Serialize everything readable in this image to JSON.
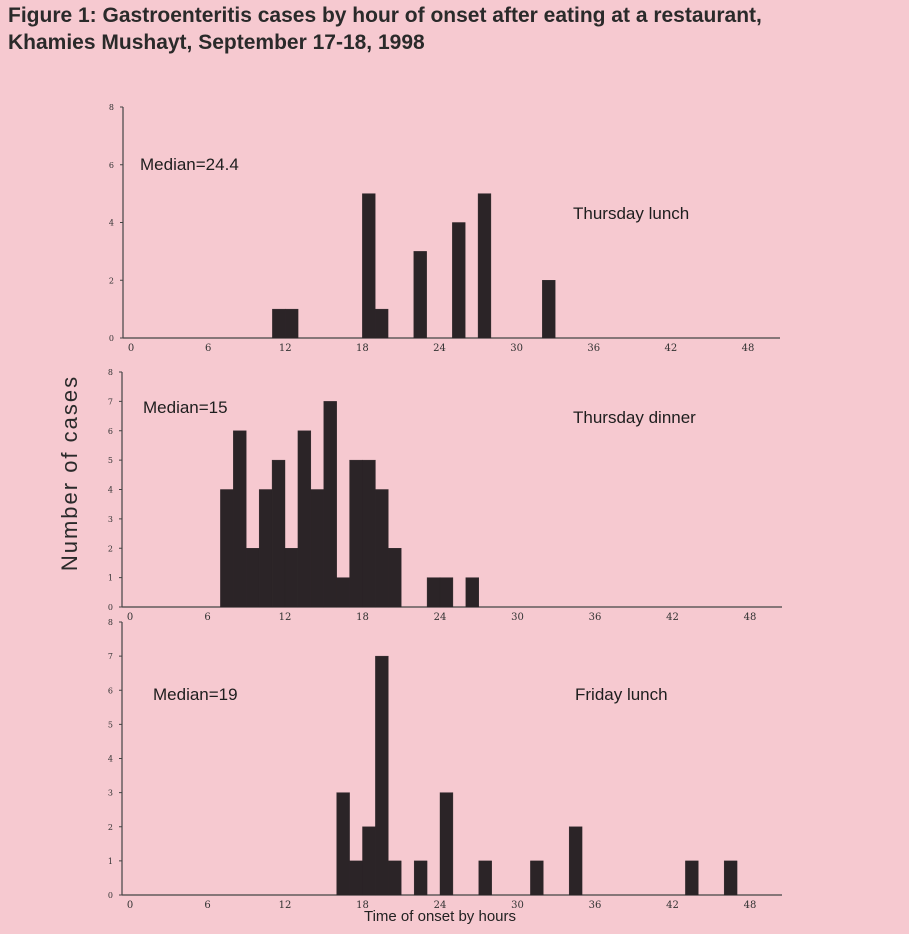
{
  "title_line1": "Figure 1: Gastroenteritis cases by hour of onset after eating at a restaurant,",
  "title_line2": "Khamies Mushayt, September 17-18, 1998",
  "ylabel": "Number of cases",
  "xlabel": "Time of onset by hours",
  "colors": {
    "background": "#f6c9d0",
    "bar": "#2b2427",
    "axis": "#444444"
  },
  "chart_data": [
    {
      "type": "bar",
      "panel": "Thursday lunch",
      "label": "Thursday lunch",
      "median_label": "Median=24.4",
      "xlim": [
        0,
        48
      ],
      "xticks": [
        0,
        6,
        12,
        18,
        24,
        30,
        36,
        42,
        48
      ],
      "ylim": [
        0,
        8
      ],
      "yticks": [
        0,
        2,
        4,
        6,
        8
      ],
      "bin_width": 1,
      "bars": [
        {
          "x": 11,
          "y": 1
        },
        {
          "x": 12,
          "y": 1
        },
        {
          "x": 18,
          "y": 5
        },
        {
          "x": 19,
          "y": 1
        },
        {
          "x": 22,
          "y": 3
        },
        {
          "x": 25,
          "y": 4
        },
        {
          "x": 27,
          "y": 5
        },
        {
          "x": 32,
          "y": 2
        }
      ]
    },
    {
      "type": "bar",
      "panel": "Thursday dinner",
      "label": "Thursday dinner",
      "median_label": "Median=15",
      "xlim": [
        0,
        48
      ],
      "xticks": [
        0,
        6,
        12,
        18,
        24,
        30,
        36,
        42,
        48
      ],
      "ylim": [
        0,
        8
      ],
      "yticks": [
        0,
        1,
        2,
        3,
        4,
        5,
        6,
        7,
        8
      ],
      "bin_width": 1,
      "bars": [
        {
          "x": 7,
          "y": 4
        },
        {
          "x": 8,
          "y": 6
        },
        {
          "x": 9,
          "y": 2
        },
        {
          "x": 10,
          "y": 4
        },
        {
          "x": 11,
          "y": 5
        },
        {
          "x": 12,
          "y": 2
        },
        {
          "x": 13,
          "y": 6
        },
        {
          "x": 14,
          "y": 4
        },
        {
          "x": 15,
          "y": 7
        },
        {
          "x": 16,
          "y": 1
        },
        {
          "x": 17,
          "y": 5
        },
        {
          "x": 18,
          "y": 5
        },
        {
          "x": 19,
          "y": 4
        },
        {
          "x": 20,
          "y": 2
        },
        {
          "x": 23,
          "y": 1
        },
        {
          "x": 24,
          "y": 1
        },
        {
          "x": 26,
          "y": 1
        }
      ]
    },
    {
      "type": "bar",
      "panel": "Friday lunch",
      "label": "Friday lunch",
      "median_label": "Median=19",
      "xlim": [
        0,
        48
      ],
      "xticks": [
        0,
        6,
        12,
        18,
        24,
        30,
        36,
        42,
        48
      ],
      "ylim": [
        0,
        8
      ],
      "yticks": [
        0,
        1,
        2,
        3,
        4,
        5,
        6,
        7,
        8
      ],
      "bin_width": 1,
      "bars": [
        {
          "x": 16,
          "y": 3
        },
        {
          "x": 17,
          "y": 1
        },
        {
          "x": 18,
          "y": 2
        },
        {
          "x": 19,
          "y": 7
        },
        {
          "x": 20,
          "y": 1
        },
        {
          "x": 22,
          "y": 1
        },
        {
          "x": 24,
          "y": 3
        },
        {
          "x": 27,
          "y": 1
        },
        {
          "x": 31,
          "y": 1
        },
        {
          "x": 34,
          "y": 2
        },
        {
          "x": 43,
          "y": 1
        },
        {
          "x": 46,
          "y": 1
        }
      ]
    }
  ]
}
